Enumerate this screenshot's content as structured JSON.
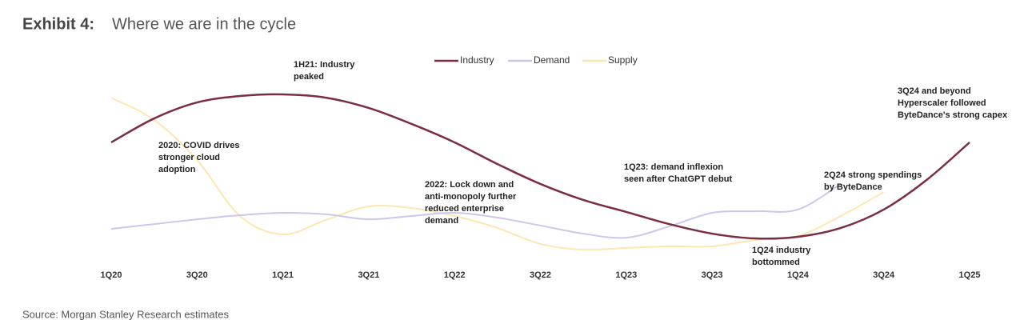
{
  "chart_data": {
    "type": "line",
    "label": "Exhibit 4:",
    "title": "Where we are in the cycle",
    "source": "Source: Morgan Stanley Research estimates",
    "categories": [
      "1Q20",
      null,
      "3Q20",
      null,
      "1Q21",
      null,
      "3Q21",
      null,
      "1Q22",
      null,
      "3Q22",
      null,
      "1Q23",
      null,
      "3Q23",
      null,
      "1Q24",
      null,
      "3Q24",
      null,
      "1Q25"
    ],
    "ylim": [
      0,
      100
    ],
    "series": [
      {
        "name": "Industry",
        "color": "#7b2d43",
        "values": [
          66.1,
          79.1,
          87.8,
          91.3,
          92.2,
          90.4,
          84.8,
          76.1,
          66.1,
          54.3,
          43.5,
          34.8,
          28.3,
          21.7,
          16.5,
          13.9,
          14.8,
          19.6,
          29.6,
          45.7,
          66.1
        ]
      },
      {
        "name": "Demand",
        "color": "#cdc7ec",
        "values": [
          19.1,
          21.7,
          24.3,
          26.5,
          27.8,
          27.0,
          24.3,
          26.1,
          27.8,
          25.2,
          20.9,
          16.5,
          14.3,
          20.4,
          27.8,
          28.7,
          29.6,
          43.5,
          null,
          null,
          null
        ]
      },
      {
        "name": "Supply",
        "color": "#fde6b0",
        "values": [
          90.4,
          78.3,
          56.5,
          26.1,
          16.1,
          23.9,
          31.3,
          30.4,
          26.1,
          19.6,
          10.9,
          7.8,
          8.7,
          9.6,
          9.6,
          13.0,
          15.2,
          26.1,
          39.1,
          null,
          null
        ]
      }
    ],
    "annotations": [
      [
        "1H21: Industry",
        "peaked"
      ],
      [
        "2020: COVID drives",
        "stronger cloud",
        "adoption"
      ],
      [
        "2022: Lock down and",
        "anti-monopoly further",
        "reduced enterprise",
        "demand"
      ],
      [
        "1Q23: demand inflexion",
        "seen after ChatGPT debut"
      ],
      [
        "2Q24 strong spendings",
        "by ByteDance"
      ],
      [
        "3Q24 and beyond",
        "Hyperscaler followed",
        "ByteDance's strong capex"
      ],
      [
        "1Q24 industry",
        "bottommed"
      ]
    ]
  }
}
